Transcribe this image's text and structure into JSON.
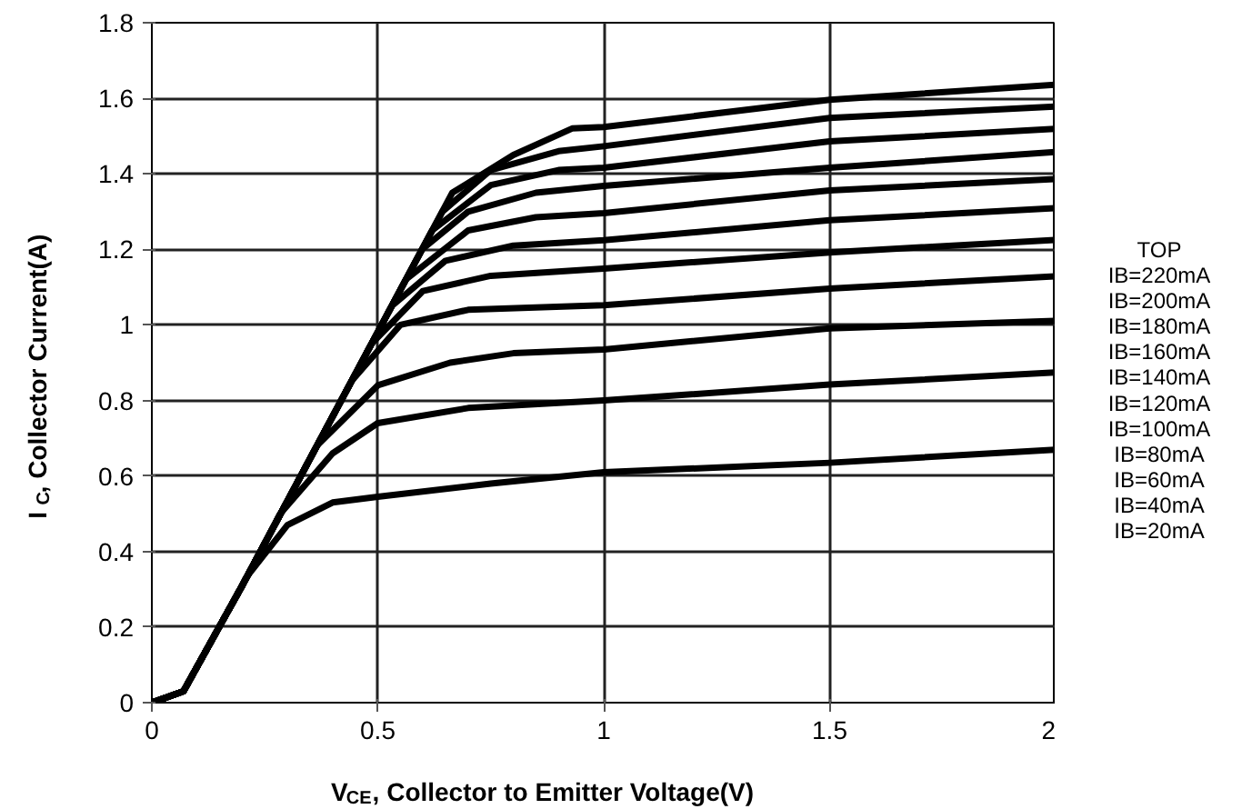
{
  "chart_data": {
    "type": "line",
    "xlabel": "V$_{CE}$, Collector to Emitter Voltage(V)",
    "ylabel": "I$_{C}$, Collector Current(A)",
    "xlim": [
      0,
      2
    ],
    "ylim": [
      0,
      1.8
    ],
    "xticks": [
      0,
      0.5,
      1,
      1.5,
      2
    ],
    "yticks": [
      0,
      0.2,
      0.4,
      0.6,
      0.8,
      1,
      1.2,
      1.4,
      1.6,
      1.8
    ],
    "grid": true,
    "marker": "none",
    "line_style": "solid",
    "annotations": [
      "TOP",
      "IB=220mA",
      "IB=200mA",
      "IB=180mA",
      "IB=160mA",
      "IB=140mA",
      "IB=120mA",
      "IB=100mA",
      "IB=80mA",
      "IB=60mA",
      "IB=40mA",
      "IB=20mA"
    ],
    "series": [
      {
        "color": "#000000",
        "x": [
          0,
          0.07,
          0.2,
          0.208,
          0.3,
          0.4,
          0.5,
          0.75,
          1,
          1.5,
          2
        ],
        "values": [
          0,
          0.03,
          0.31,
          0.33,
          0.47,
          0.53,
          0.545,
          0.58,
          0.61,
          0.635,
          0.67
        ]
      },
      {
        "color": "#000000",
        "x": [
          0,
          0.07,
          0.2,
          0.284,
          0.4,
          0.5,
          0.7,
          1,
          1.5,
          2
        ],
        "values": [
          0,
          0.03,
          0.31,
          0.5,
          0.66,
          0.74,
          0.78,
          0.8,
          0.842,
          0.874
        ]
      },
      {
        "color": "#000000",
        "x": [
          0,
          0.07,
          0.2,
          0.365,
          0.5,
          0.66,
          0.8,
          1,
          1.5,
          2
        ],
        "values": [
          0,
          0.03,
          0.31,
          0.68,
          0.84,
          0.9,
          0.925,
          0.935,
          0.991,
          1.011
        ]
      },
      {
        "color": "#000000",
        "x": [
          0,
          0.07,
          0.2,
          0.441,
          0.55,
          0.7,
          1,
          1.5,
          2
        ],
        "values": [
          0,
          0.03,
          0.31,
          0.85,
          1.0,
          1.04,
          1.052,
          1.096,
          1.129
        ]
      },
      {
        "color": "#000000",
        "x": [
          0,
          0.07,
          0.2,
          0.486,
          0.6,
          0.75,
          1,
          1.5,
          2
        ],
        "values": [
          0,
          0.03,
          0.31,
          0.95,
          1.09,
          1.13,
          1.149,
          1.192,
          1.225
        ]
      },
      {
        "color": "#000000",
        "x": [
          0,
          0.07,
          0.2,
          0.531,
          0.65,
          0.8,
          1,
          1.5,
          2
        ],
        "values": [
          0,
          0.03,
          0.31,
          1.05,
          1.17,
          1.21,
          1.224,
          1.277,
          1.309
        ]
      },
      {
        "color": "#000000",
        "x": [
          0,
          0.07,
          0.2,
          0.562,
          0.7,
          0.85,
          1,
          1.5,
          2
        ],
        "values": [
          0,
          0.03,
          0.31,
          1.12,
          1.25,
          1.285,
          1.296,
          1.356,
          1.386
        ]
      },
      {
        "color": "#000000",
        "x": [
          0,
          0.07,
          0.2,
          0.598,
          0.7,
          0.85,
          1,
          1.5,
          2
        ],
        "values": [
          0,
          0.03,
          0.31,
          1.2,
          1.3,
          1.35,
          1.368,
          1.416,
          1.458
        ]
      },
      {
        "color": "#000000",
        "x": [
          0,
          0.07,
          0.2,
          0.62,
          0.75,
          0.9,
          1,
          1.5,
          2
        ],
        "values": [
          0,
          0.03,
          0.31,
          1.25,
          1.37,
          1.41,
          1.416,
          1.486,
          1.519
        ]
      },
      {
        "color": "#000000",
        "x": [
          0,
          0.07,
          0.2,
          0.643,
          0.75,
          0.9,
          1,
          1.5,
          2
        ],
        "values": [
          0,
          0.03,
          0.31,
          1.3,
          1.41,
          1.46,
          1.473,
          1.548,
          1.578
        ]
      },
      {
        "color": "#000000",
        "x": [
          0,
          0.07,
          0.2,
          0.665,
          0.8,
          0.93,
          1,
          1.5,
          2
        ],
        "values": [
          0,
          0.03,
          0.31,
          1.35,
          1.45,
          1.52,
          1.524,
          1.596,
          1.636
        ]
      }
    ]
  }
}
